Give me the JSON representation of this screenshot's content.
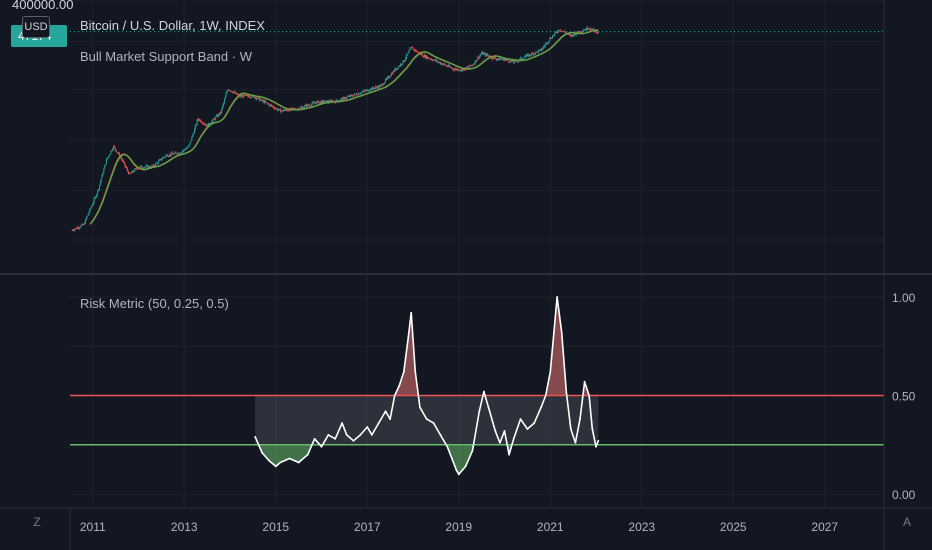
{
  "header": {
    "top_price_label": "400000.00",
    "price_tag": "47174",
    "currency_label": "USD",
    "symbol_title": "Bitcoin / U.S. Dollar, 1W, INDEX",
    "study_title": "Bull Market Support Band · W",
    "risk_title": "Risk Metric (50, 0.25, 0.5)"
  },
  "controls": {
    "left_button": "Z",
    "right_button": "A"
  },
  "colors": {
    "background": "#131722",
    "risk_line": "#ffffff",
    "upper_band": "#f05350",
    "lower_band": "#66bb6a",
    "fill_high": "#e57373",
    "fill_low": "#66bb6a",
    "fill_mid": "#5d606b",
    "candle_up": "#26a69a",
    "candle_down": "#ef5350",
    "band_sma": "#ff5722",
    "band_ema": "#4caf50"
  },
  "chart_data": [
    {
      "type": "line",
      "title": "Bitcoin / U.S. Dollar, 1W, INDEX",
      "subtitle": "Bull Market Support Band · W",
      "scale": "log",
      "ylim": [
        0.1,
        400000
      ],
      "y_tick_labels": [
        "400000.00"
      ],
      "last_value_label": "47174",
      "series": [
        {
          "x": [
            2010.55,
            2010.8,
            2011.1,
            2011.3,
            2011.45,
            2011.6,
            2011.8,
            2012.0,
            2012.3,
            2012.6,
            2012.9,
            2013.1,
            2013.3,
            2013.5,
            2013.8,
            2013.95,
            2014.2,
            2014.5,
            2014.8,
            2015.1,
            2015.5,
            2015.9,
            2016.3,
            2016.7,
            2017.0,
            2017.3,
            2017.6,
            2017.8,
            2017.96,
            2018.2,
            2018.5,
            2018.9,
            2019.1,
            2019.3,
            2019.5,
            2019.8,
            2020.0,
            2020.2,
            2020.5,
            2020.8,
            2021.0,
            2021.2,
            2021.45,
            2021.6,
            2021.85,
            2022.0,
            2022.05
          ],
          "values": [
            0.07,
            0.1,
            0.9,
            8,
            20,
            10,
            3,
            5,
            5,
            11,
            13,
            20,
            130,
            80,
            200,
            1000,
            600,
            600,
            370,
            220,
            260,
            400,
            420,
            640,
            900,
            1200,
            3500,
            6500,
            16000,
            9500,
            6500,
            3700,
            3600,
            5000,
            11000,
            7500,
            7200,
            6000,
            9300,
            13500,
            30000,
            55000,
            35000,
            45000,
            62000,
            47000,
            47174
          ]
        }
      ]
    },
    {
      "type": "line",
      "title": "Risk Metric (50, 0.25, 0.5)",
      "ylim": [
        0,
        1
      ],
      "y_tick_labels": [
        "1.00",
        "0.50",
        "0.00"
      ],
      "x_tick_labels": [
        "2011",
        "2013",
        "2015",
        "2017",
        "2019",
        "2021",
        "2023",
        "2025",
        "2027"
      ],
      "reference_lines": [
        0.5,
        0.25
      ],
      "series": [
        {
          "x": [
            2014.55,
            2014.7,
            2014.85,
            2015.0,
            2015.1,
            2015.3,
            2015.5,
            2015.7,
            2015.85,
            2016.0,
            2016.15,
            2016.3,
            2016.45,
            2016.55,
            2016.7,
            2016.85,
            2017.0,
            2017.1,
            2017.25,
            2017.4,
            2017.5,
            2017.6,
            2017.7,
            2017.8,
            2017.9,
            2017.96,
            2018.05,
            2018.15,
            2018.3,
            2018.45,
            2018.6,
            2018.75,
            2018.85,
            2018.95,
            2019.0,
            2019.15,
            2019.3,
            2019.45,
            2019.55,
            2019.65,
            2019.8,
            2019.9,
            2020.0,
            2020.1,
            2020.2,
            2020.35,
            2020.5,
            2020.65,
            2020.8,
            2020.9,
            2021.0,
            2021.08,
            2021.15,
            2021.25,
            2021.35,
            2021.45,
            2021.55,
            2021.65,
            2021.75,
            2021.85,
            2021.92,
            2022.0,
            2022.05
          ],
          "values": [
            0.29,
            0.21,
            0.17,
            0.14,
            0.16,
            0.18,
            0.16,
            0.2,
            0.28,
            0.24,
            0.3,
            0.28,
            0.36,
            0.3,
            0.27,
            0.3,
            0.34,
            0.3,
            0.36,
            0.42,
            0.38,
            0.5,
            0.55,
            0.62,
            0.8,
            0.92,
            0.62,
            0.44,
            0.38,
            0.36,
            0.3,
            0.24,
            0.18,
            0.12,
            0.1,
            0.14,
            0.22,
            0.42,
            0.52,
            0.44,
            0.32,
            0.26,
            0.32,
            0.2,
            0.28,
            0.38,
            0.33,
            0.36,
            0.44,
            0.5,
            0.62,
            0.82,
            1.0,
            0.82,
            0.52,
            0.33,
            0.26,
            0.38,
            0.57,
            0.5,
            0.33,
            0.24,
            0.27
          ]
        }
      ]
    }
  ]
}
